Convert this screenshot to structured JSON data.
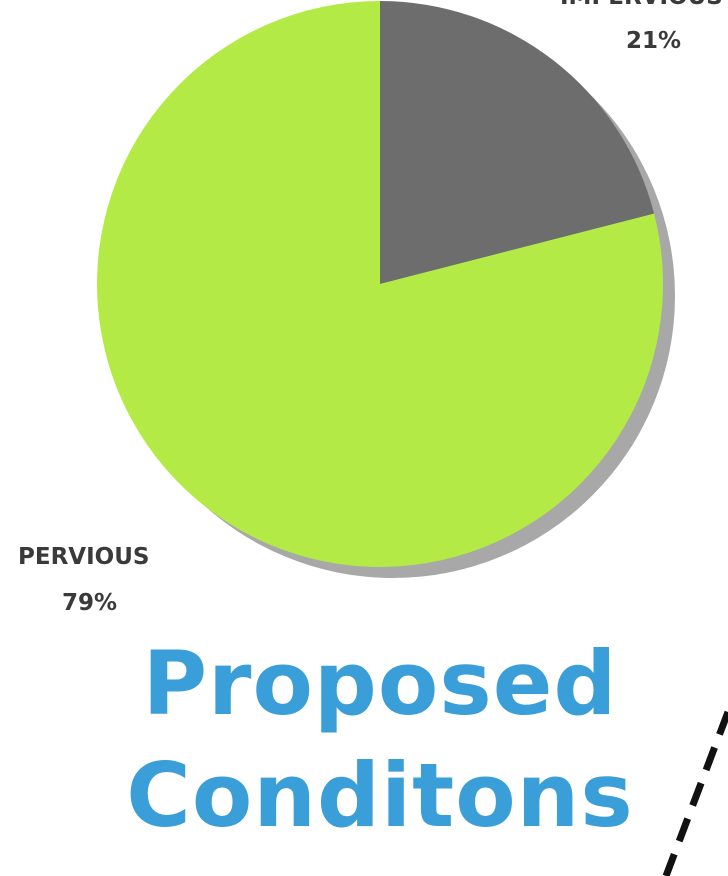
{
  "chart_data": {
    "type": "pie",
    "slices": [
      {
        "label": "IMPERVIOUS",
        "value": 21,
        "percent_label": "21%",
        "color": "#6d6d6d"
      },
      {
        "label": "PERVIOUS",
        "value": 79,
        "percent_label": "79%",
        "color": "#b3ea45"
      }
    ],
    "start_angle_deg": 0,
    "direction": "clockwise",
    "shadow_color": "#a8a8a8"
  },
  "title": {
    "line1": "Proposed",
    "line2": "Conditons",
    "color": "#3a9fd8"
  }
}
